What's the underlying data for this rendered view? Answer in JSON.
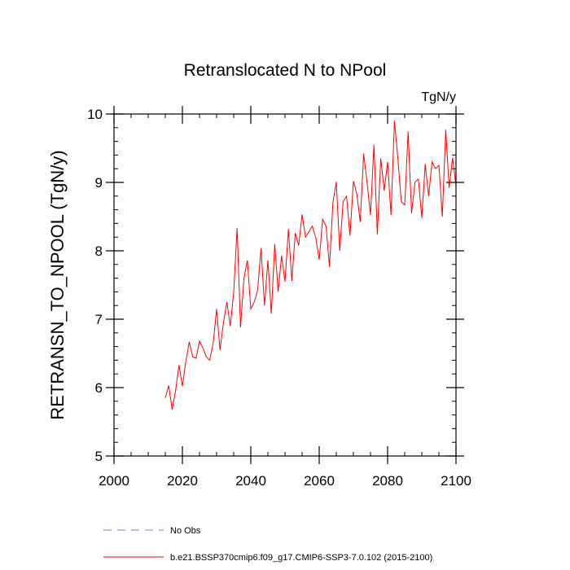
{
  "chart_data": {
    "type": "line",
    "title": "Retranslocated N to NPool",
    "units_label": "TgN/y",
    "xlabel": "",
    "ylabel": "RETRANSN_TO_NPOOL  (TgN/y)",
    "xlim": [
      2000,
      2100
    ],
    "ylim": [
      5,
      10
    ],
    "x_ticks": [
      2000,
      2020,
      2040,
      2060,
      2080,
      2100
    ],
    "y_ticks": [
      5,
      6,
      7,
      8,
      9,
      10
    ],
    "x_minor_step": 5,
    "y_minor_step": 0.2,
    "grid": false,
    "legend_position": "bottom",
    "legend": [
      {
        "label": "No Obs",
        "color": "#7b7bf0",
        "style": "dashed"
      },
      {
        "label": "b.e21.BSSP370cmip6.f09_g17.CMIP6-SSP3-7.0.102 (2015-2100)",
        "color": "#ff0000",
        "style": "solid"
      }
    ],
    "series": [
      {
        "color": "#ff0000",
        "x": [
          2015,
          2016,
          2017,
          2018,
          2019,
          2020,
          2021,
          2022,
          2023,
          2024,
          2025,
          2026,
          2027,
          2028,
          2029,
          2030,
          2031,
          2032,
          2033,
          2034,
          2035,
          2036,
          2037,
          2038,
          2039,
          2040,
          2041,
          2042,
          2043,
          2044,
          2045,
          2046,
          2047,
          2048,
          2049,
          2050,
          2051,
          2052,
          2053,
          2054,
          2055,
          2056,
          2057,
          2058,
          2059,
          2060,
          2061,
          2062,
          2063,
          2064,
          2065,
          2066,
          2067,
          2068,
          2069,
          2070,
          2071,
          2072,
          2073,
          2074,
          2075,
          2076,
          2077,
          2078,
          2079,
          2080,
          2081,
          2082,
          2083,
          2084,
          2085,
          2086,
          2087,
          2088,
          2089,
          2090,
          2091,
          2092,
          2093,
          2094,
          2095,
          2096,
          2097,
          2098,
          2099,
          2100
        ],
        "values": [
          5.85,
          6.03,
          5.68,
          5.95,
          6.33,
          6.02,
          6.38,
          6.67,
          6.45,
          6.43,
          6.68,
          6.58,
          6.45,
          6.4,
          6.65,
          7.15,
          6.55,
          6.95,
          7.25,
          6.9,
          7.4,
          8.33,
          6.88,
          7.6,
          7.86,
          7.15,
          7.25,
          7.42,
          8.04,
          7.2,
          7.86,
          7.08,
          8.1,
          7.4,
          7.93,
          7.55,
          8.32,
          7.56,
          8.26,
          8.08,
          8.53,
          8.2,
          8.28,
          8.36,
          8.19,
          7.87,
          8.46,
          8.36,
          7.77,
          8.7,
          9.01,
          8.0,
          8.72,
          8.8,
          8.22,
          9.02,
          8.83,
          8.42,
          9.42,
          9.0,
          8.52,
          9.55,
          8.24,
          9.35,
          8.88,
          9.3,
          8.52,
          9.9,
          9.35,
          8.72,
          8.67,
          9.74,
          8.55,
          9.0,
          9.05,
          8.48,
          9.27,
          8.8,
          9.3,
          9.2,
          9.25,
          8.5,
          9.77,
          8.92,
          9.36,
          8.95
        ]
      }
    ]
  }
}
